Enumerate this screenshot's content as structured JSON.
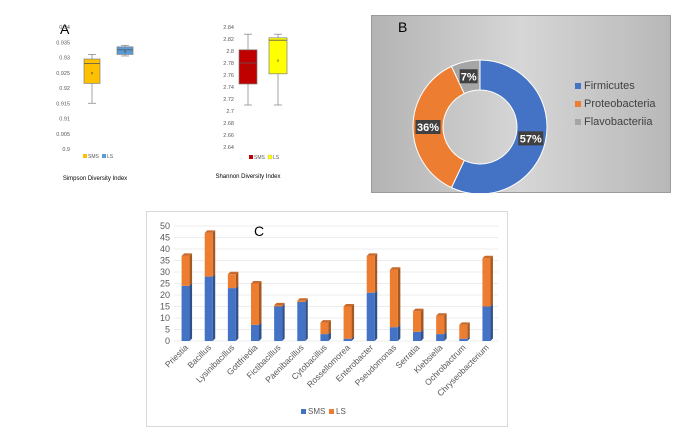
{
  "panels": {
    "a_letter": "A",
    "b_letter": "B",
    "c_letter": "C"
  },
  "colors": {
    "sms": "#4472C4",
    "ls": "#ED7D31",
    "sms_box_simpson": "#FFC000",
    "ls_box_simpson": "#5B9BD5",
    "sms_box_shannon": "#C00000",
    "ls_box_shannon": "#FFFF00",
    "flavo": "#A5A5A5",
    "grid": "#D9D9D9"
  },
  "chart_data": [
    {
      "type": "boxplot",
      "title": "Simpson Diversity Index",
      "ylim": [
        0.9,
        0.94
      ],
      "yticks": [
        "0.94",
        "0.935",
        "0.93",
        "0.925",
        "0.92",
        "0.915",
        "0.91",
        "0.905",
        "0.9"
      ],
      "legend": [
        "SMS",
        "LS"
      ],
      "legend_position": "bottom",
      "series": [
        {
          "name": "SMS",
          "min": 0.915,
          "q1": 0.9215,
          "median": 0.928,
          "q3": 0.9295,
          "max": 0.931,
          "mean": 0.925
        },
        {
          "name": "LS",
          "min": 0.9305,
          "q1": 0.931,
          "median": 0.9325,
          "q3": 0.9335,
          "max": 0.934,
          "mean": 0.932
        }
      ]
    },
    {
      "type": "boxplot",
      "title": "Shannon Diversity Index",
      "ylim": [
        2.64,
        2.84
      ],
      "yticks": [
        "2.84",
        "2.82",
        "2.8",
        "2.78",
        "2.76",
        "2.74",
        "2.72",
        "2.7",
        "2.68",
        "2.66",
        "2.64"
      ],
      "legend": [
        "SMS",
        "LS"
      ],
      "legend_position": "bottom",
      "series": [
        {
          "name": "SMS",
          "min": 2.71,
          "q1": 2.745,
          "median": 2.78,
          "q3": 2.802,
          "max": 2.828,
          "mean": 2.772
        },
        {
          "name": "LS",
          "min": 2.71,
          "q1": 2.762,
          "median": 2.818,
          "q3": 2.822,
          "max": 2.828,
          "mean": 2.784
        }
      ]
    },
    {
      "type": "pie",
      "donut": true,
      "labels": [
        "Firmicutes",
        "Proteobacteria",
        "Flavobacteriia"
      ],
      "values": [
        57,
        36,
        7
      ],
      "data_labels": [
        "57%",
        "36%",
        "7%"
      ],
      "legend_position": "right"
    },
    {
      "type": "bar",
      "stacked": true,
      "categories": [
        "Priestia",
        "Bacillus",
        "Lysinibacillus",
        "Gottfriedia",
        "Fictibacillus",
        "Paenibacillus",
        "Cytobacillus",
        "Rossellomorea",
        "Enterobacter",
        "Pseudomonas",
        "Serratia",
        "Klebsiella",
        "Ochrobactrum",
        "Chryseobacterium"
      ],
      "ylim": [
        0,
        50
      ],
      "yticks": [
        "0",
        "5",
        "10",
        "15",
        "20",
        "25",
        "30",
        "35",
        "40",
        "45",
        "50"
      ],
      "legend_position": "bottom",
      "series": [
        {
          "name": "SMS",
          "values": [
            24,
            28,
            23,
            7,
            15,
            17,
            3,
            1,
            21,
            6,
            4,
            3,
            1,
            15
          ]
        },
        {
          "name": "LS",
          "values": [
            13,
            19,
            6,
            18,
            0.5,
            0.5,
            5,
            14,
            16,
            25,
            9,
            8,
            6,
            21
          ]
        }
      ]
    }
  ]
}
